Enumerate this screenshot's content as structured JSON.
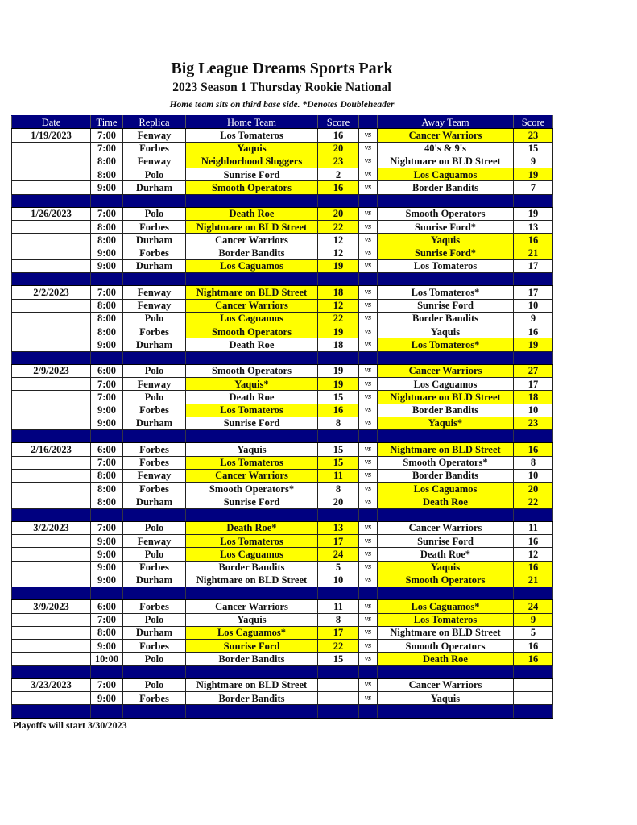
{
  "header": {
    "title": "Big League Dreams Sports Park",
    "subtitle": "2023 Season 1 Thursday Rookie National",
    "note": "Home team sits on third base side.  *Denotes Doubleheader"
  },
  "columns": [
    "Date",
    "Time",
    "Replica",
    "Home Team",
    "Score",
    "",
    "Away Team",
    "Score"
  ],
  "vs_label": "vs",
  "colors": {
    "header_bg": "#000080",
    "winner_highlight": "#ffff00"
  },
  "groups": [
    {
      "date": "1/19/2023",
      "games": [
        {
          "time": "7:00",
          "replica": "Fenway",
          "home": "Los Tomateros",
          "home_score": "16",
          "away": "Cancer Warriors",
          "away_score": "23",
          "winner": "away"
        },
        {
          "time": "7:00",
          "replica": "Forbes",
          "home": "Yaquis",
          "home_score": "20",
          "away": "40's & 9's",
          "away_score": "15",
          "winner": "home"
        },
        {
          "time": "8:00",
          "replica": "Fenway",
          "home": "Neighborhood Sluggers",
          "home_score": "23",
          "away": "Nightmare on BLD Street",
          "away_score": "9",
          "winner": "home"
        },
        {
          "time": "8:00",
          "replica": "Polo",
          "home": "Sunrise Ford",
          "home_score": "2",
          "away": "Los Caguamos",
          "away_score": "19",
          "winner": "away"
        },
        {
          "time": "9:00",
          "replica": "Durham",
          "home": "Smooth Operators",
          "home_score": "16",
          "away": "Border Bandits",
          "away_score": "7",
          "winner": "home"
        }
      ]
    },
    {
      "date": "1/26/2023",
      "games": [
        {
          "time": "7:00",
          "replica": "Polo",
          "home": "Death Roe",
          "home_score": "20",
          "away": "Smooth Operators",
          "away_score": "19",
          "winner": "home"
        },
        {
          "time": "8:00",
          "replica": "Forbes",
          "home": "Nightmare on BLD Street",
          "home_score": "22",
          "away": "Sunrise Ford*",
          "away_score": "13",
          "winner": "home"
        },
        {
          "time": "8:00",
          "replica": "Durham",
          "home": "Cancer Warriors",
          "home_score": "12",
          "away": "Yaquis",
          "away_score": "16",
          "winner": "away"
        },
        {
          "time": "9:00",
          "replica": "Forbes",
          "home": "Border Bandits",
          "home_score": "12",
          "away": "Sunrise Ford*",
          "away_score": "21",
          "winner": "away"
        },
        {
          "time": "9:00",
          "replica": "Durham",
          "home": "Los Caguamos",
          "home_score": "19",
          "away": "Los Tomateros",
          "away_score": "17",
          "winner": "home"
        }
      ]
    },
    {
      "date": "2/2/2023",
      "games": [
        {
          "time": "7:00",
          "replica": "Fenway",
          "home": "Nightmare on BLD Street",
          "home_score": "18",
          "away": "Los Tomateros*",
          "away_score": "17",
          "winner": "home"
        },
        {
          "time": "8:00",
          "replica": "Fenway",
          "home": "Cancer Warriors",
          "home_score": "12",
          "away": "Sunrise Ford",
          "away_score": "10",
          "winner": "home"
        },
        {
          "time": "8:00",
          "replica": "Polo",
          "home": "Los Caguamos",
          "home_score": "22",
          "away": "Border Bandits",
          "away_score": "9",
          "winner": "home"
        },
        {
          "time": "8:00",
          "replica": "Forbes",
          "home": "Smooth Operators",
          "home_score": "19",
          "away": "Yaquis",
          "away_score": "16",
          "winner": "home"
        },
        {
          "time": "9:00",
          "replica": "Durham",
          "home": "Death Roe",
          "home_score": "18",
          "away": "Los Tomateros*",
          "away_score": "19",
          "winner": "away"
        }
      ]
    },
    {
      "date": "2/9/2023",
      "games": [
        {
          "time": "6:00",
          "replica": "Polo",
          "home": "Smooth Operators",
          "home_score": "19",
          "away": "Cancer Warriors",
          "away_score": "27",
          "winner": "away"
        },
        {
          "time": "7:00",
          "replica": "Fenway",
          "home": "Yaquis*",
          "home_score": "19",
          "away": "Los Caguamos",
          "away_score": "17",
          "winner": "home"
        },
        {
          "time": "7:00",
          "replica": "Polo",
          "home": "Death Roe",
          "home_score": "15",
          "away": "Nightmare on BLD Street",
          "away_score": "18",
          "winner": "away"
        },
        {
          "time": "9:00",
          "replica": "Forbes",
          "home": "Los Tomateros",
          "home_score": "16",
          "away": "Border Bandits",
          "away_score": "10",
          "winner": "home"
        },
        {
          "time": "9:00",
          "replica": "Durham",
          "home": "Sunrise Ford",
          "home_score": "8",
          "away": "Yaquis*",
          "away_score": "23",
          "winner": "away"
        }
      ]
    },
    {
      "date": "2/16/2023",
      "games": [
        {
          "time": "6:00",
          "replica": "Forbes",
          "home": "Yaquis",
          "home_score": "15",
          "away": "Nightmare on BLD Street",
          "away_score": "16",
          "winner": "away"
        },
        {
          "time": "7:00",
          "replica": "Forbes",
          "home": "Los Tomateros",
          "home_score": "15",
          "away": "Smooth Operators*",
          "away_score": "8",
          "winner": "home"
        },
        {
          "time": "8:00",
          "replica": "Fenway",
          "home": "Cancer Warriors",
          "home_score": "11",
          "away": "Border Bandits",
          "away_score": "10",
          "winner": "home"
        },
        {
          "time": "8:00",
          "replica": "Forbes",
          "home": "Smooth Operators*",
          "home_score": "8",
          "away": "Los Caguamos",
          "away_score": "20",
          "winner": "away"
        },
        {
          "time": "8:00",
          "replica": "Durham",
          "home": "Sunrise Ford",
          "home_score": "20",
          "away": "Death Roe",
          "away_score": "22",
          "winner": "away"
        }
      ]
    },
    {
      "date": "3/2/2023",
      "games": [
        {
          "time": "7:00",
          "replica": "Polo",
          "home": "Death Roe*",
          "home_score": "13",
          "away": "Cancer Warriors",
          "away_score": "11",
          "winner": "home"
        },
        {
          "time": "9:00",
          "replica": "Fenway",
          "home": "Los Tomateros",
          "home_score": "17",
          "away": "Sunrise Ford",
          "away_score": "16",
          "winner": "home"
        },
        {
          "time": "9:00",
          "replica": "Polo",
          "home": "Los Caguamos",
          "home_score": "24",
          "away": "Death Roe*",
          "away_score": "12",
          "winner": "home"
        },
        {
          "time": "9:00",
          "replica": "Forbes",
          "home": "Border Bandits",
          "home_score": "5",
          "away": "Yaquis",
          "away_score": "16",
          "winner": "away"
        },
        {
          "time": "9:00",
          "replica": "Durham",
          "home": "Nightmare on BLD Street",
          "home_score": "10",
          "away": "Smooth Operators",
          "away_score": "21",
          "winner": "away"
        }
      ]
    },
    {
      "date": "3/9/2023",
      "games": [
        {
          "time": "6:00",
          "replica": "Forbes",
          "home": "Cancer Warriors",
          "home_score": "11",
          "away": "Los Caguamos*",
          "away_score": "24",
          "winner": "away"
        },
        {
          "time": "7:00",
          "replica": "Polo",
          "home": "Yaquis",
          "home_score": "8",
          "away": "Los Tomateros",
          "away_score": "9",
          "winner": "away"
        },
        {
          "time": "8:00",
          "replica": "Durham",
          "home": "Los Caguamos*",
          "home_score": "17",
          "away": "Nightmare on BLD Street",
          "away_score": "5",
          "winner": "home"
        },
        {
          "time": "9:00",
          "replica": "Forbes",
          "home": "Sunrise Ford",
          "home_score": "22",
          "away": "Smooth Operators",
          "away_score": "16",
          "winner": "home"
        },
        {
          "time": "10:00",
          "replica": "Polo",
          "home": "Border Bandits",
          "home_score": "15",
          "away": "Death Roe",
          "away_score": "16",
          "winner": "away"
        }
      ]
    },
    {
      "date": "3/23/2023",
      "games": [
        {
          "time": "7:00",
          "replica": "Polo",
          "home": "Nightmare on BLD Street",
          "home_score": "",
          "away": "Cancer Warriors",
          "away_score": "",
          "winner": ""
        },
        {
          "time": "9:00",
          "replica": "Forbes",
          "home": "Border Bandits",
          "home_score": "",
          "away": "Yaquis",
          "away_score": "",
          "winner": ""
        }
      ]
    }
  ],
  "footer": "Playoffs will start 3/30/2023"
}
